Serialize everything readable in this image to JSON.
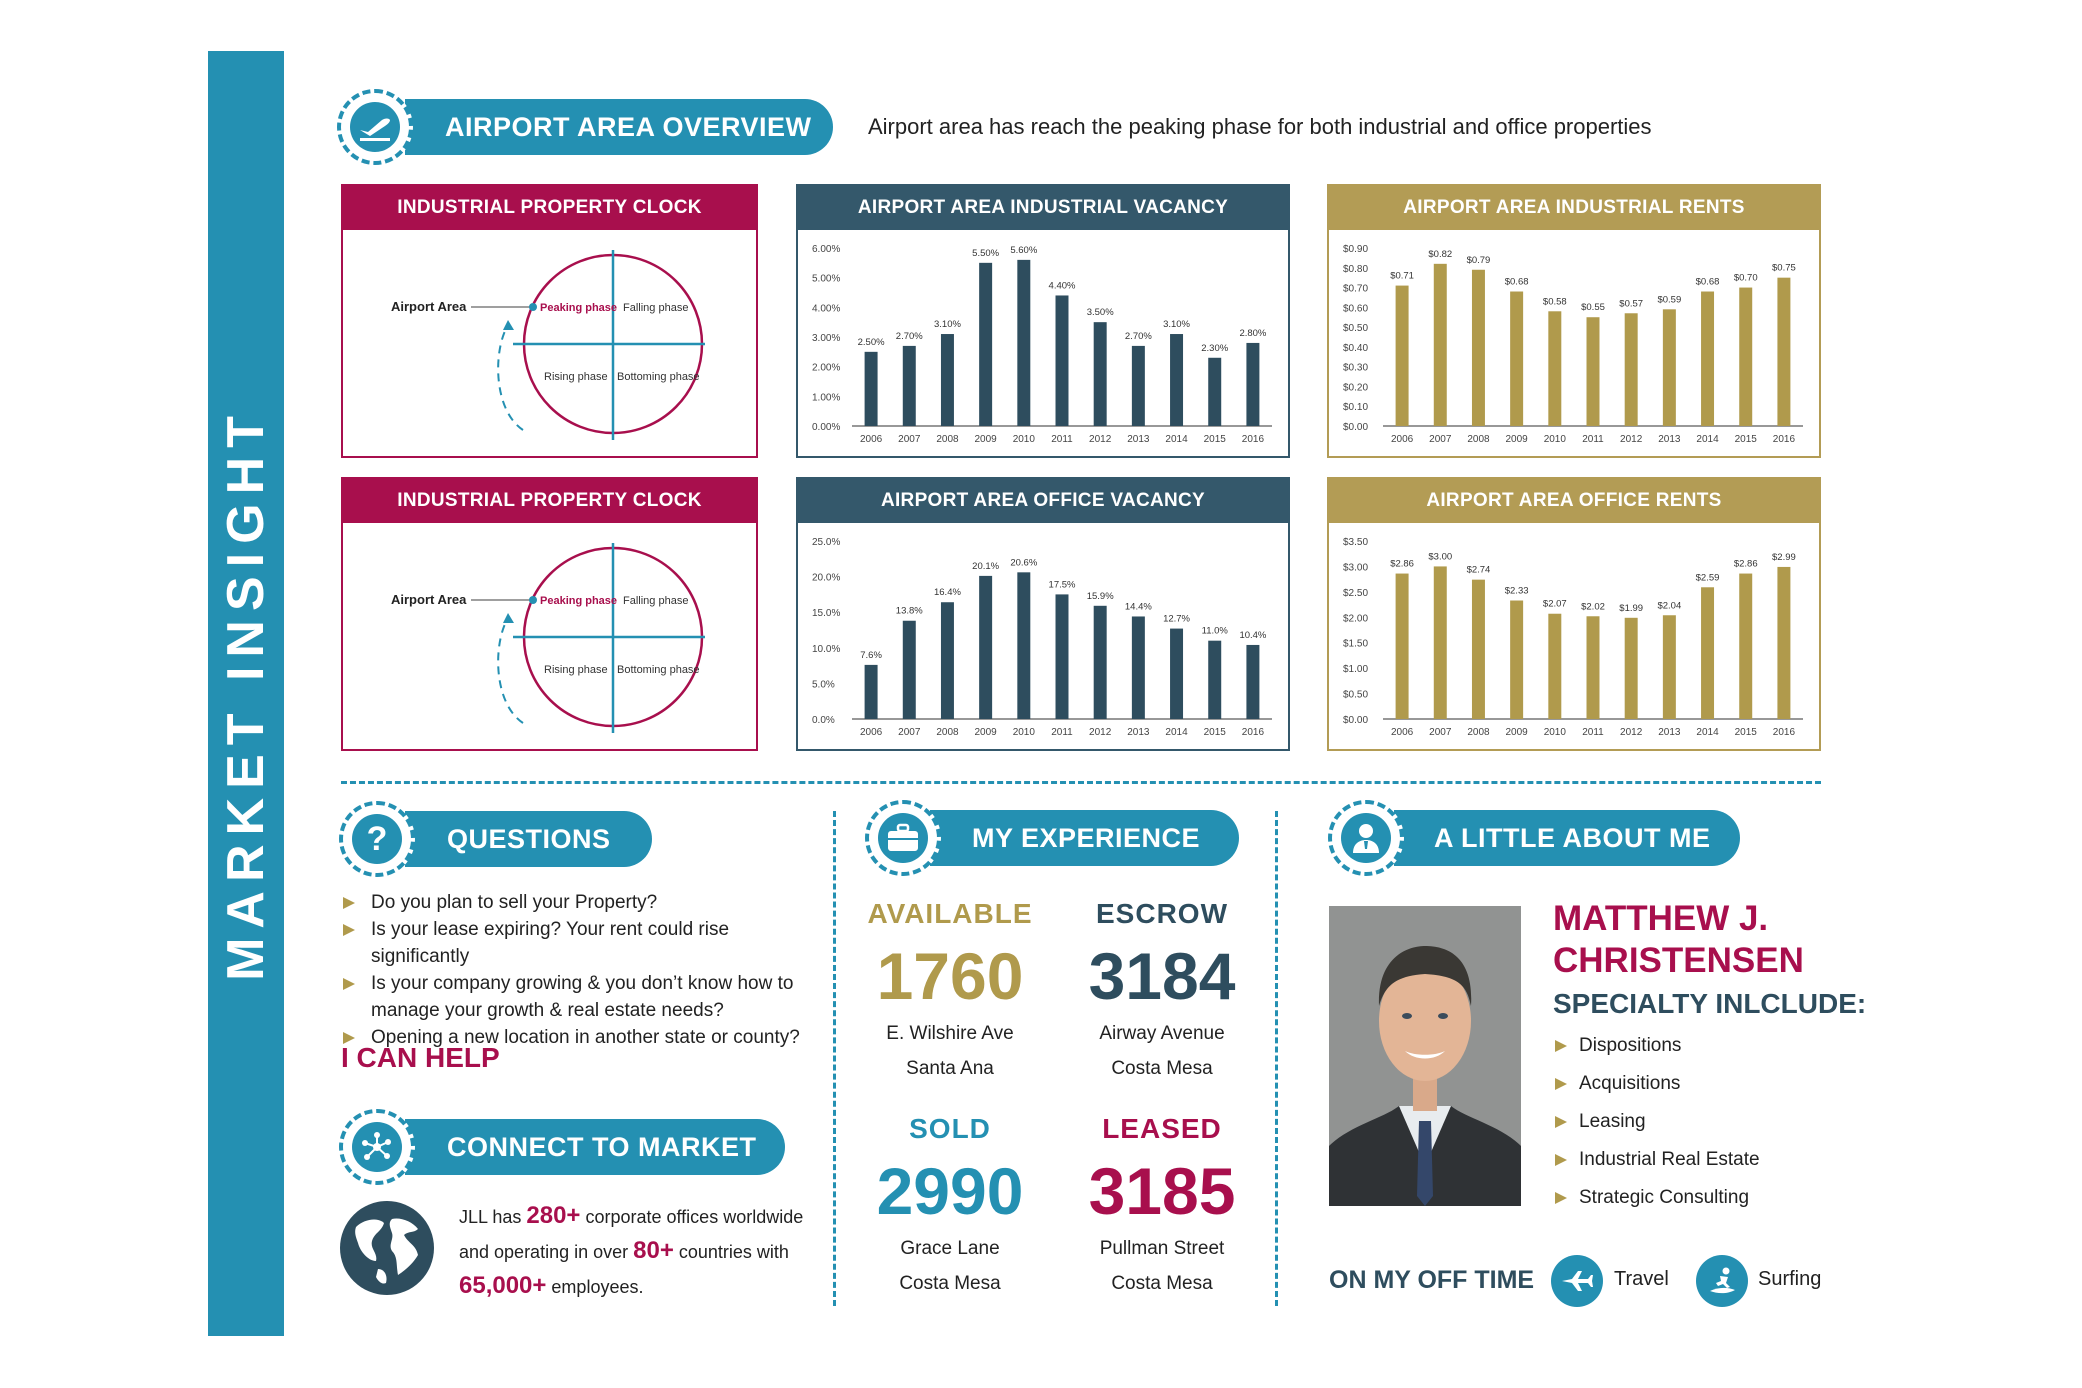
{
  "sidebar": {
    "title": "MARKET INSIGHT"
  },
  "overview": {
    "title": "AIRPORT AREA OVERVIEW",
    "description": "Airport area has reach the peaking phase for both industrial and office properties"
  },
  "clocks": [
    {
      "title": "INDUSTRIAL PROPERTY CLOCK",
      "marker_label": "Airport Area",
      "q1": "Peaking phase",
      "q2": "Falling phase",
      "q3": "Rising phase",
      "q4": "Bottoming phase"
    },
    {
      "title": "INDUSTRIAL PROPERTY CLOCK",
      "marker_label": "Airport Area",
      "q1": "Peaking phase",
      "q2": "Falling phase",
      "q3": "Rising phase",
      "q4": "Bottoming phase"
    }
  ],
  "chart_data": [
    {
      "type": "bar",
      "title": "AIRPORT AREA INDUSTRIAL VACANCY",
      "categories": [
        "2006",
        "2007",
        "2008",
        "2009",
        "2010",
        "2011",
        "2012",
        "2013",
        "2014",
        "2015",
        "2016"
      ],
      "values": [
        2.5,
        2.7,
        3.1,
        5.5,
        5.6,
        4.4,
        3.5,
        2.7,
        3.1,
        2.3,
        2.8
      ],
      "value_labels": [
        "2.50%",
        "2.70%",
        "3.10%",
        "5.50%",
        "5.60%",
        "4.40%",
        "3.50%",
        "2.70%",
        "3.10%",
        "2.30%",
        "2.80%"
      ],
      "ylim": [
        0,
        6
      ],
      "yticks": [
        "0.00%",
        "1.00%",
        "2.00%",
        "3.00%",
        "4.00%",
        "5.00%",
        "6.00%"
      ],
      "color": "#2e4d5e",
      "header_color": "#34586b"
    },
    {
      "type": "bar",
      "title": "AIRPORT AREA INDUSTRIAL RENTS",
      "categories": [
        "2006",
        "2007",
        "2008",
        "2009",
        "2010",
        "2011",
        "2012",
        "2013",
        "2014",
        "2015",
        "2016"
      ],
      "values": [
        0.71,
        0.82,
        0.79,
        0.68,
        0.58,
        0.55,
        0.57,
        0.59,
        0.68,
        0.7,
        0.75
      ],
      "value_labels": [
        "$0.71",
        "$0.82",
        "$0.79",
        "$0.68",
        "$0.58",
        "$0.55",
        "$0.57",
        "$0.59",
        "$0.68",
        "$0.70",
        "$0.75"
      ],
      "ylim": [
        0,
        0.9
      ],
      "yticks": [
        "$0.00",
        "$0.10",
        "$0.20",
        "$0.30",
        "$0.40",
        "$0.50",
        "$0.60",
        "$0.70",
        "$0.80",
        "$0.90"
      ],
      "color": "#b09a4c",
      "header_color": "#b39c55"
    },
    {
      "type": "bar",
      "title": "AIRPORT AREA OFFICE VACANCY",
      "categories": [
        "2006",
        "2007",
        "2008",
        "2009",
        "2010",
        "2011",
        "2012",
        "2013",
        "2014",
        "2015",
        "2016"
      ],
      "values": [
        7.6,
        13.8,
        16.4,
        20.1,
        20.6,
        17.5,
        15.9,
        14.4,
        12.7,
        11.0,
        10.4
      ],
      "value_labels": [
        "7.6%",
        "13.8%",
        "16.4%",
        "20.1%",
        "20.6%",
        "17.5%",
        "15.9%",
        "14.4%",
        "12.7%",
        "11.0%",
        "10.4%"
      ],
      "ylim": [
        0,
        25
      ],
      "yticks": [
        "0.0%",
        "5.0%",
        "10.0%",
        "15.0%",
        "20.0%",
        "25.0%"
      ],
      "color": "#2e4d5e",
      "header_color": "#34586b"
    },
    {
      "type": "bar",
      "title": "AIRPORT AREA OFFICE RENTS",
      "categories": [
        "2006",
        "2007",
        "2008",
        "2009",
        "2010",
        "2011",
        "2012",
        "2013",
        "2014",
        "2015",
        "2016"
      ],
      "values": [
        2.86,
        3.0,
        2.74,
        2.33,
        2.07,
        2.02,
        1.99,
        2.04,
        2.59,
        2.86,
        2.99
      ],
      "value_labels": [
        "$2.86",
        "$3.00",
        "$2.74",
        "$2.33",
        "$2.07",
        "$2.02",
        "$1.99",
        "$2.04",
        "$2.59",
        "$2.86",
        "$2.99"
      ],
      "ylim": [
        0,
        3.5
      ],
      "yticks": [
        "$0.00",
        "$0.50",
        "$1.00",
        "$1.50",
        "$2.00",
        "$2.50",
        "$3.00",
        "$3.50"
      ],
      "color": "#b09a4c",
      "header_color": "#b39c55"
    }
  ],
  "questions": {
    "title": "QUESTIONS",
    "items": [
      "Do you plan to sell your Property?",
      "Is your lease expiring? Your rent could rise significantly",
      "Is your company growing & you don’t know how to",
      "Opening a new location in another state or county?"
    ],
    "item3_cont": "manage your growth & real estate needs?",
    "cta": "I CAN HELP"
  },
  "connect": {
    "title": "CONNECT TO MARKET",
    "p1": "JLL has ",
    "n1": "280+",
    "p2": " corporate offices worldwide",
    "p3": "and operating in over ",
    "n2": "80+",
    "p4": " countries with",
    "n3": "65,000+",
    "p5": " employees."
  },
  "experience": {
    "title": "MY EXPERIENCE",
    "items": [
      {
        "label": "AVAILABLE",
        "number": "1760",
        "line1": "E. Wilshire Ave",
        "line2": "Santa Ana",
        "color": "#b09a4c"
      },
      {
        "label": "ESCROW",
        "number": "3184",
        "line1": "Airway Avenue",
        "line2": "Costa Mesa",
        "color": "#2e4d5e"
      },
      {
        "label": "SOLD",
        "number": "2990",
        "line1": "Grace Lane",
        "line2": "Costa Mesa",
        "color": "#2490b2"
      },
      {
        "label": "LEASED",
        "number": "3185",
        "line1": "Pullman Street",
        "line2": "Costa Mesa",
        "color": "#a80f4d"
      }
    ]
  },
  "about": {
    "title": "A LITTLE ABOUT ME",
    "name_line1": "MATTHEW J.",
    "name_line2": "CHRISTENSEN",
    "specialty_title": "SPECIALTY INLCLUDE:",
    "specialties": [
      "Dispositions",
      "Acquisitions",
      "Leasing",
      "Industrial Real Estate",
      "Strategic Consulting"
    ],
    "off_time_label": "ON MY OFF TIME",
    "hobbies": [
      "Travel",
      "Surfing"
    ]
  },
  "colors": {
    "teal": "#2490b2",
    "magenta": "#a80f4d",
    "gold": "#b09a4c",
    "navy": "#2e4d5e"
  }
}
